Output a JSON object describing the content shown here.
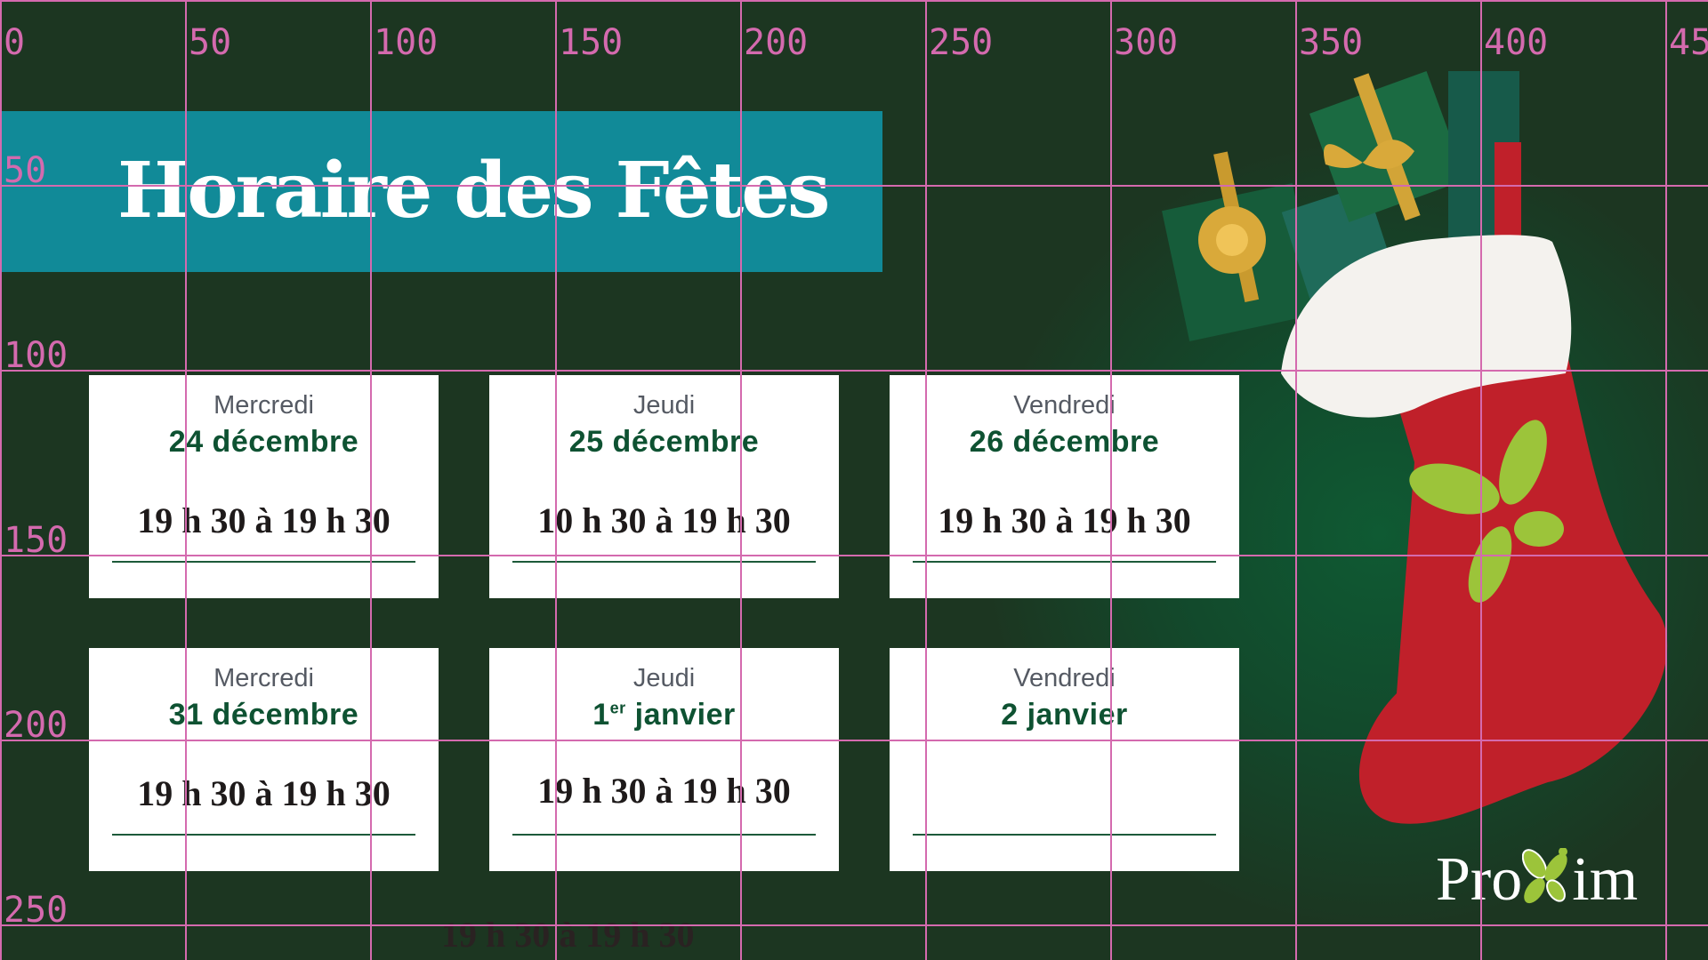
{
  "title": "Horaire des Fêtes",
  "cards": [
    {
      "day": "Mercredi",
      "date_prefix": "24 décembre",
      "date_sup": "",
      "date_suffix": "",
      "hours": "19 h 30 à 19 h 30"
    },
    {
      "day": "Jeudi",
      "date_prefix": "25 décembre",
      "date_sup": "",
      "date_suffix": "",
      "hours": "10 h 30 à 19 h 30"
    },
    {
      "day": "Vendredi",
      "date_prefix": "26 décembre",
      "date_sup": "",
      "date_suffix": "",
      "hours": "19 h 30 à 19 h 30"
    },
    {
      "day": "Mercredi",
      "date_prefix": "31 décembre",
      "date_sup": "",
      "date_suffix": "",
      "hours": "19 h 30 à 19 h 30"
    },
    {
      "day": "Jeudi",
      "date_prefix": "1",
      "date_sup": "er",
      "date_suffix": " janvier",
      "hours": ""
    },
    {
      "day": "Vendredi",
      "date_prefix": "2 janvier",
      "date_sup": "",
      "date_suffix": "",
      "hours": ""
    }
  ],
  "overflow_hours": [
    "19 h 30 à 19 h 30",
    "19 h 30 à 19 h 30"
  ],
  "logo": {
    "text_left": "Pro",
    "text_right": "im"
  },
  "grid": {
    "x_labels": [
      "0",
      "50",
      "100",
      "150",
      "200",
      "250",
      "300",
      "350",
      "400",
      "45"
    ],
    "y_labels": [
      "50",
      "100",
      "150",
      "200",
      "250"
    ]
  },
  "colors": {
    "background": "#1c3621",
    "banner": "#118a98",
    "date_green": "#0e5232",
    "grid": "#d46aae",
    "stocking_red": "#c0202a",
    "leaf_green": "#9cc43a"
  }
}
